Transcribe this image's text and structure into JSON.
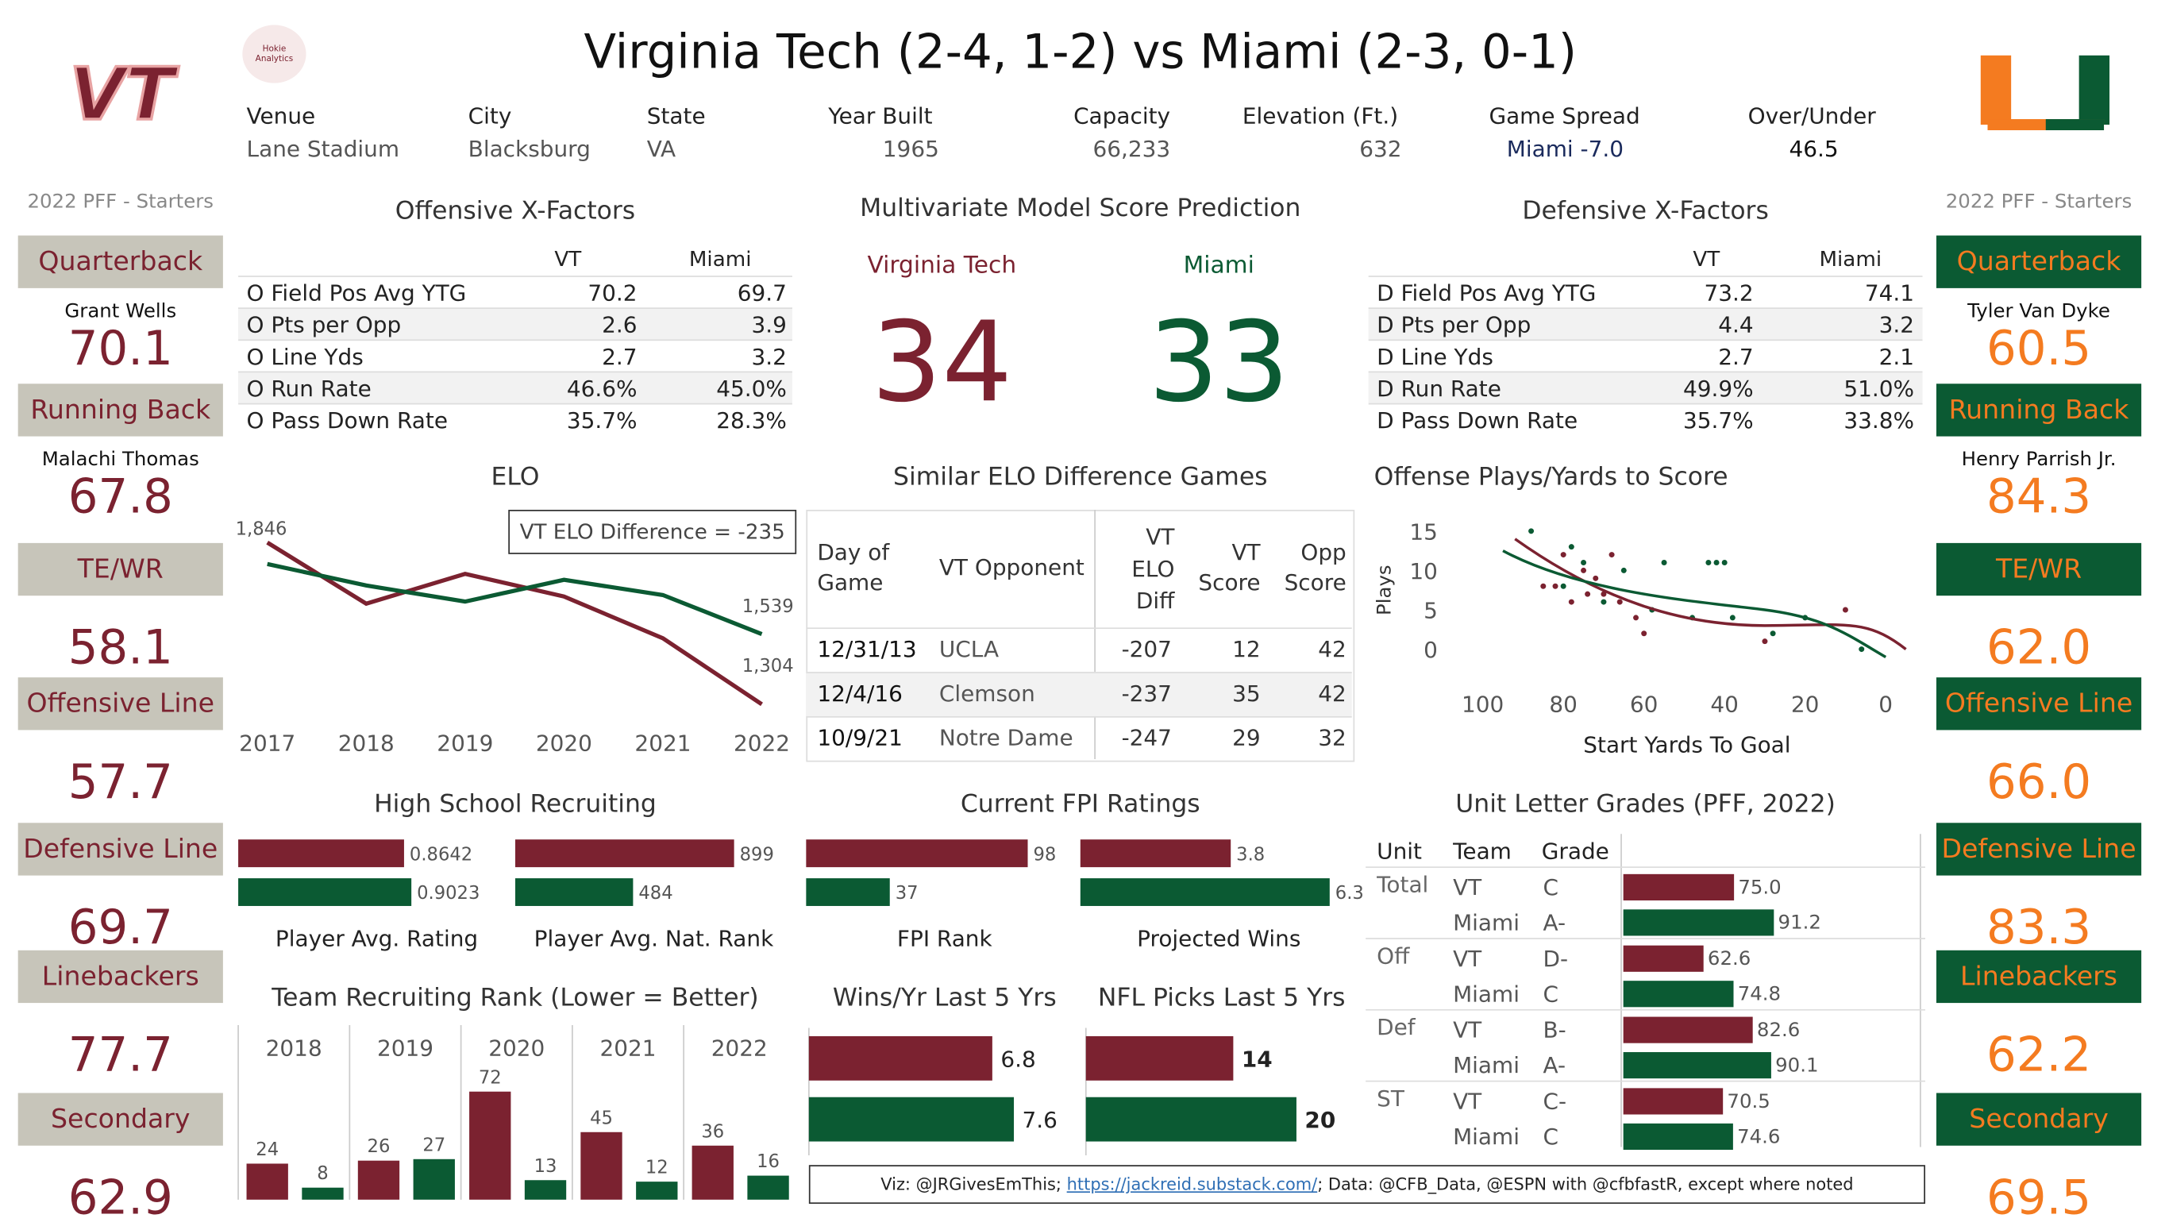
{
  "title": "Virginia Tech (2-4, 1-2) vs Miami (2-3, 0-1)",
  "logos": {
    "vt": "VT",
    "hokie": "Hokie Analytics",
    "miami": "U"
  },
  "venue": [
    {
      "label": "Venue",
      "value": "Lane Stadium"
    },
    {
      "label": "City",
      "value": "Blacksburg"
    },
    {
      "label": "State",
      "value": "VA"
    },
    {
      "label": "Year Built",
      "value": "1965"
    },
    {
      "label": "Capacity",
      "value": "66,233"
    },
    {
      "label": "Elevation (Ft.)",
      "value": "632"
    },
    {
      "label": "Game Spread",
      "value": "Miami -7.0"
    },
    {
      "label": "Over/Under",
      "value": "46.5"
    }
  ],
  "pff_label": "2022 PFF - Starters",
  "vt_positions": [
    {
      "pos": "Quarterback",
      "player": "Grant Wells",
      "score": "70.1"
    },
    {
      "pos": "Running Back",
      "player": "Malachi Thomas",
      "score": "67.8"
    },
    {
      "pos": "TE/WR",
      "player": "",
      "score": "58.1"
    },
    {
      "pos": "Offensive Line",
      "player": "",
      "score": "57.7"
    },
    {
      "pos": "Defensive Line",
      "player": "",
      "score": "69.7"
    },
    {
      "pos": "Linebackers",
      "player": "",
      "score": "77.7"
    },
    {
      "pos": "Secondary",
      "player": "",
      "score": "62.9"
    }
  ],
  "miami_positions": [
    {
      "pos": "Quarterback",
      "player": "Tyler Van Dyke",
      "score": "60.5"
    },
    {
      "pos": "Running Back",
      "player": "Henry Parrish Jr.",
      "score": "84.3"
    },
    {
      "pos": "TE/WR",
      "player": "",
      "score": "62.0"
    },
    {
      "pos": "Offensive Line",
      "player": "",
      "score": "66.0"
    },
    {
      "pos": "Defensive Line",
      "player": "",
      "score": "83.3"
    },
    {
      "pos": "Linebackers",
      "player": "",
      "score": "62.2"
    },
    {
      "pos": "Secondary",
      "player": "",
      "score": "69.5"
    }
  ],
  "offensive_xfactors": {
    "title": "Offensive X-Factors",
    "col_vt": "VT",
    "col_miami": "Miami",
    "rows": [
      {
        "label": "O Field Pos Avg YTG",
        "vt": "70.2",
        "miami": "69.7"
      },
      {
        "label": "O Pts per Opp",
        "vt": "2.6",
        "miami": "3.9"
      },
      {
        "label": "O Line Yds",
        "vt": "2.7",
        "miami": "3.2"
      },
      {
        "label": "O Run Rate",
        "vt": "46.6%",
        "miami": "45.0%"
      },
      {
        "label": "O Pass Down Rate",
        "vt": "35.7%",
        "miami": "28.3%"
      }
    ]
  },
  "defensive_xfactors": {
    "title": "Defensive X-Factors",
    "col_vt": "VT",
    "col_miami": "Miami",
    "rows": [
      {
        "label": "D Field Pos Avg YTG",
        "vt": "73.2",
        "miami": "74.1"
      },
      {
        "label": "D Pts per Opp",
        "vt": "4.4",
        "miami": "3.2"
      },
      {
        "label": "D Line Yds",
        "vt": "2.7",
        "miami": "2.1"
      },
      {
        "label": "D Run Rate",
        "vt": "49.9%",
        "miami": "51.0%"
      },
      {
        "label": "D Pass Down Rate",
        "vt": "35.7%",
        "miami": "33.8%"
      }
    ]
  },
  "prediction": {
    "title": "Multivariate Model Score Prediction",
    "vt_label": "Virginia Tech",
    "miami_label": "Miami",
    "vt_score": "34",
    "miami_score": "33"
  },
  "elo": {
    "title": "ELO",
    "diff_label": "VT ELO Difference = -235"
  },
  "similar_games": {
    "title": "Similar ELO Difference Games",
    "headers": [
      "Day of Game",
      "VT Opponent",
      "VT ELO Diff",
      "VT Score",
      "Opp Score"
    ],
    "rows": [
      {
        "date": "12/31/13",
        "opp": "UCLA",
        "diff": "-207",
        "vt": "12",
        "opp_score": "42"
      },
      {
        "date": "12/4/16",
        "opp": "Clemson",
        "diff": "-237",
        "vt": "35",
        "opp_score": "42"
      },
      {
        "date": "10/9/21",
        "opp": "Notre Dame",
        "diff": "-247",
        "vt": "29",
        "opp_score": "32"
      }
    ]
  },
  "scatter": {
    "title": "Offense Plays/Yards to Score"
  },
  "recruiting": {
    "title": "High School Recruiting",
    "cap_rating": "Player Avg. Rating",
    "cap_rank": "Player Avg. Nat. Rank"
  },
  "fpi": {
    "title": "Current FPI Ratings",
    "cap_rank": "FPI Rank",
    "cap_wins": "Projected Wins"
  },
  "grades": {
    "title": "Unit Letter Grades (PFF, 2022)",
    "headers": [
      "Unit",
      "Team",
      "Grade"
    ]
  },
  "team_rank": {
    "title": "Team Recruiting Rank (Lower = Better)"
  },
  "wins": {
    "title": "Wins/Yr Last 5 Yrs"
  },
  "nfl": {
    "title": "NFL Picks Last 5 Yrs"
  },
  "footer": {
    "prefix": "Viz: @JRGivesEmThis; ",
    "link": "https://jackreid.substack.com/",
    "suffix": "; Data: @CFB_Data, @ESPN with @cfbfastR, except where noted"
  },
  "colors": {
    "vt": "#7b2230",
    "miami": "#0b5a33",
    "miami_orange": "#f47b20",
    "gray_box": "#c7c5ba"
  },
  "chart_data": [
    {
      "type": "line",
      "title": "ELO",
      "x": [
        2017,
        2018,
        2019,
        2020,
        2021,
        2022
      ],
      "series": [
        {
          "name": "VT",
          "values": [
            1846,
            1641,
            1741,
            1665,
            1525,
            1304
          ]
        },
        {
          "name": "Miami",
          "values": [
            1774,
            1702,
            1648,
            1721,
            1670,
            1539
          ]
        }
      ],
      "ylim": [
        1250,
        1900
      ]
    },
    {
      "type": "scatter",
      "title": "Offense Plays/Yards to Score",
      "xlabel": "Start Yards To Goal",
      "ylabel": "Plays",
      "xticks": [
        100,
        80,
        60,
        40,
        20,
        0
      ],
      "yticks": [
        0,
        5,
        10,
        15
      ],
      "xlim": [
        105,
        -5
      ],
      "ylim": [
        -2,
        17
      ],
      "series": [
        {
          "name": "VT",
          "points": [
            [
              80,
              12
            ],
            [
              75,
              10
            ],
            [
              72,
              9
            ],
            [
              85,
              8
            ],
            [
              70,
              7
            ],
            [
              62,
              4
            ],
            [
              66,
              6
            ],
            [
              78,
              6
            ],
            [
              60,
              2
            ],
            [
              30,
              1
            ],
            [
              10,
              5
            ],
            [
              68,
              12
            ],
            [
              82,
              8
            ],
            [
              74,
              7
            ]
          ]
        },
        {
          "name": "Miami",
          "points": [
            [
              88,
              15
            ],
            [
              78,
              13
            ],
            [
              75,
              11
            ],
            [
              80,
              8
            ],
            [
              65,
              10
            ],
            [
              55,
              11
            ],
            [
              44,
              11
            ],
            [
              42,
              11
            ],
            [
              40,
              11
            ],
            [
              48,
              4
            ],
            [
              38,
              4
            ],
            [
              28,
              2
            ],
            [
              20,
              4
            ],
            [
              6,
              0
            ],
            [
              70,
              6
            ],
            [
              58,
              5
            ]
          ]
        }
      ]
    },
    {
      "type": "bar",
      "title": "High School Recruiting",
      "categories": [
        "Player Avg. Rating",
        "Player Avg. Nat. Rank"
      ],
      "series": [
        {
          "name": "VT",
          "values": [
            0.8642,
            899
          ]
        },
        {
          "name": "Miami",
          "values": [
            0.9023,
            484
          ]
        }
      ]
    },
    {
      "type": "bar",
      "title": "Current FPI Ratings",
      "categories": [
        "FPI Rank",
        "Projected Wins"
      ],
      "series": [
        {
          "name": "VT",
          "values": [
            98,
            3.8
          ]
        },
        {
          "name": "Miami",
          "values": [
            37,
            6.3
          ]
        }
      ]
    },
    {
      "type": "bar",
      "title": "Unit Letter Grades (PFF, 2022)",
      "categories": [
        "Total",
        "Off",
        "Def",
        "ST"
      ],
      "series": [
        {
          "name": "VT",
          "values": [
            75.0,
            62.6,
            82.6,
            70.5
          ],
          "grades": [
            "C",
            "D-",
            "B-",
            "C-"
          ]
        },
        {
          "name": "Miami",
          "values": [
            91.2,
            74.8,
            90.1,
            74.6
          ],
          "grades": [
            "A-",
            "C",
            "A-",
            "C"
          ]
        }
      ]
    },
    {
      "type": "bar",
      "title": "Team Recruiting Rank (Lower = Better)",
      "categories": [
        "2018",
        "2019",
        "2020",
        "2021",
        "2022"
      ],
      "series": [
        {
          "name": "VT",
          "values": [
            24,
            26,
            72,
            45,
            36
          ]
        },
        {
          "name": "Miami",
          "values": [
            8,
            27,
            13,
            12,
            16
          ]
        }
      ]
    },
    {
      "type": "bar",
      "title": "Wins/Yr Last 5 Yrs",
      "series": [
        {
          "name": "VT",
          "values": [
            6.8
          ]
        },
        {
          "name": "Miami",
          "values": [
            7.6
          ]
        }
      ]
    },
    {
      "type": "bar",
      "title": "NFL Picks Last 5 Yrs",
      "series": [
        {
          "name": "VT",
          "values": [
            14
          ]
        },
        {
          "name": "Miami",
          "values": [
            20
          ]
        }
      ]
    }
  ]
}
